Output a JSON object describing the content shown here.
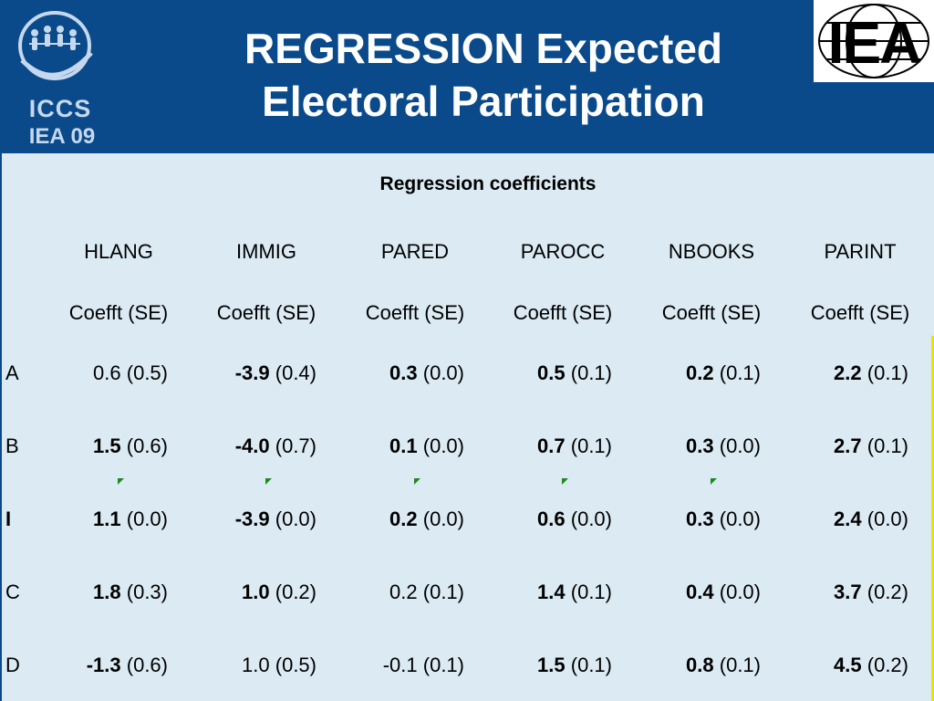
{
  "title": {
    "line1": "REGRESSION Expected",
    "line2": "Electoral Participation"
  },
  "logo_left": {
    "text1": "ICCS",
    "text2": "IEA 09"
  },
  "logo_right": {
    "text": "IEA"
  },
  "caption": "Regression coefficients",
  "columns": [
    "HLANG",
    "IMMIG",
    "PARED",
    "PAROCC",
    "NBOOKS",
    "PARINT"
  ],
  "subheader": "Coefft (SE)",
  "rows": [
    {
      "label": "A",
      "label_bold": false,
      "cells": [
        {
          "coef": "0.6",
          "se": "(0.5)",
          "bold": false
        },
        {
          "coef": "-3.9",
          "se": "(0.4)",
          "bold": true
        },
        {
          "coef": "0.3",
          "se": "(0.0)",
          "bold": true
        },
        {
          "coef": "0.5",
          "se": "(0.1)",
          "bold": true
        },
        {
          "coef": "0.2",
          "se": "(0.1)",
          "bold": true
        },
        {
          "coef": "2.2",
          "se": "(0.1)",
          "bold": true
        }
      ]
    },
    {
      "label": "B",
      "label_bold": false,
      "cells": [
        {
          "coef": "1.5",
          "se": "(0.6)",
          "bold": true
        },
        {
          "coef": "-4.0",
          "se": "(0.7)",
          "bold": true
        },
        {
          "coef": "0.1",
          "se": "(0.0)",
          "bold": true
        },
        {
          "coef": "0.7",
          "se": "(0.1)",
          "bold": true
        },
        {
          "coef": "0.3",
          "se": "(0.0)",
          "bold": true
        },
        {
          "coef": "2.7",
          "se": "(0.1)",
          "bold": true
        }
      ]
    },
    {
      "label": "I",
      "label_bold": true,
      "cells": [
        {
          "coef": "1.1",
          "se": "(0.0)",
          "bold": true
        },
        {
          "coef": "-3.9",
          "se": "(0.0)",
          "bold": true
        },
        {
          "coef": "0.2",
          "se": "(0.0)",
          "bold": true
        },
        {
          "coef": "0.6",
          "se": "(0.0)",
          "bold": true
        },
        {
          "coef": "0.3",
          "se": "(0.0)",
          "bold": true
        },
        {
          "coef": "2.4",
          "se": "(0.0)",
          "bold": true
        }
      ]
    },
    {
      "label": "C",
      "label_bold": false,
      "cells": [
        {
          "coef": "1.8",
          "se": "(0.3)",
          "bold": true
        },
        {
          "coef": "1.0",
          "se": "(0.2)",
          "bold": true
        },
        {
          "coef": "0.2",
          "se": "(0.1)",
          "bold": false
        },
        {
          "coef": "1.4",
          "se": "(0.1)",
          "bold": true
        },
        {
          "coef": "0.4",
          "se": "(0.0)",
          "bold": true
        },
        {
          "coef": "3.7",
          "se": "(0.2)",
          "bold": true
        }
      ]
    },
    {
      "label": "D",
      "label_bold": false,
      "cells": [
        {
          "coef": "-1.3",
          "se": "(0.6)",
          "bold": true
        },
        {
          "coef": "1.0",
          "se": "(0.5)",
          "bold": false
        },
        {
          "coef": "-0.1",
          "se": "(0.1)",
          "bold": false
        },
        {
          "coef": "1.5",
          "se": "(0.1)",
          "bold": true
        },
        {
          "coef": "0.8",
          "se": "(0.1)",
          "bold": true
        },
        {
          "coef": "4.5",
          "se": "(0.2)",
          "bold": true
        }
      ]
    }
  ],
  "marker_color": "#1c8a1c",
  "header_color": "#0b4a8a",
  "panel_color": "#dbeaf3"
}
